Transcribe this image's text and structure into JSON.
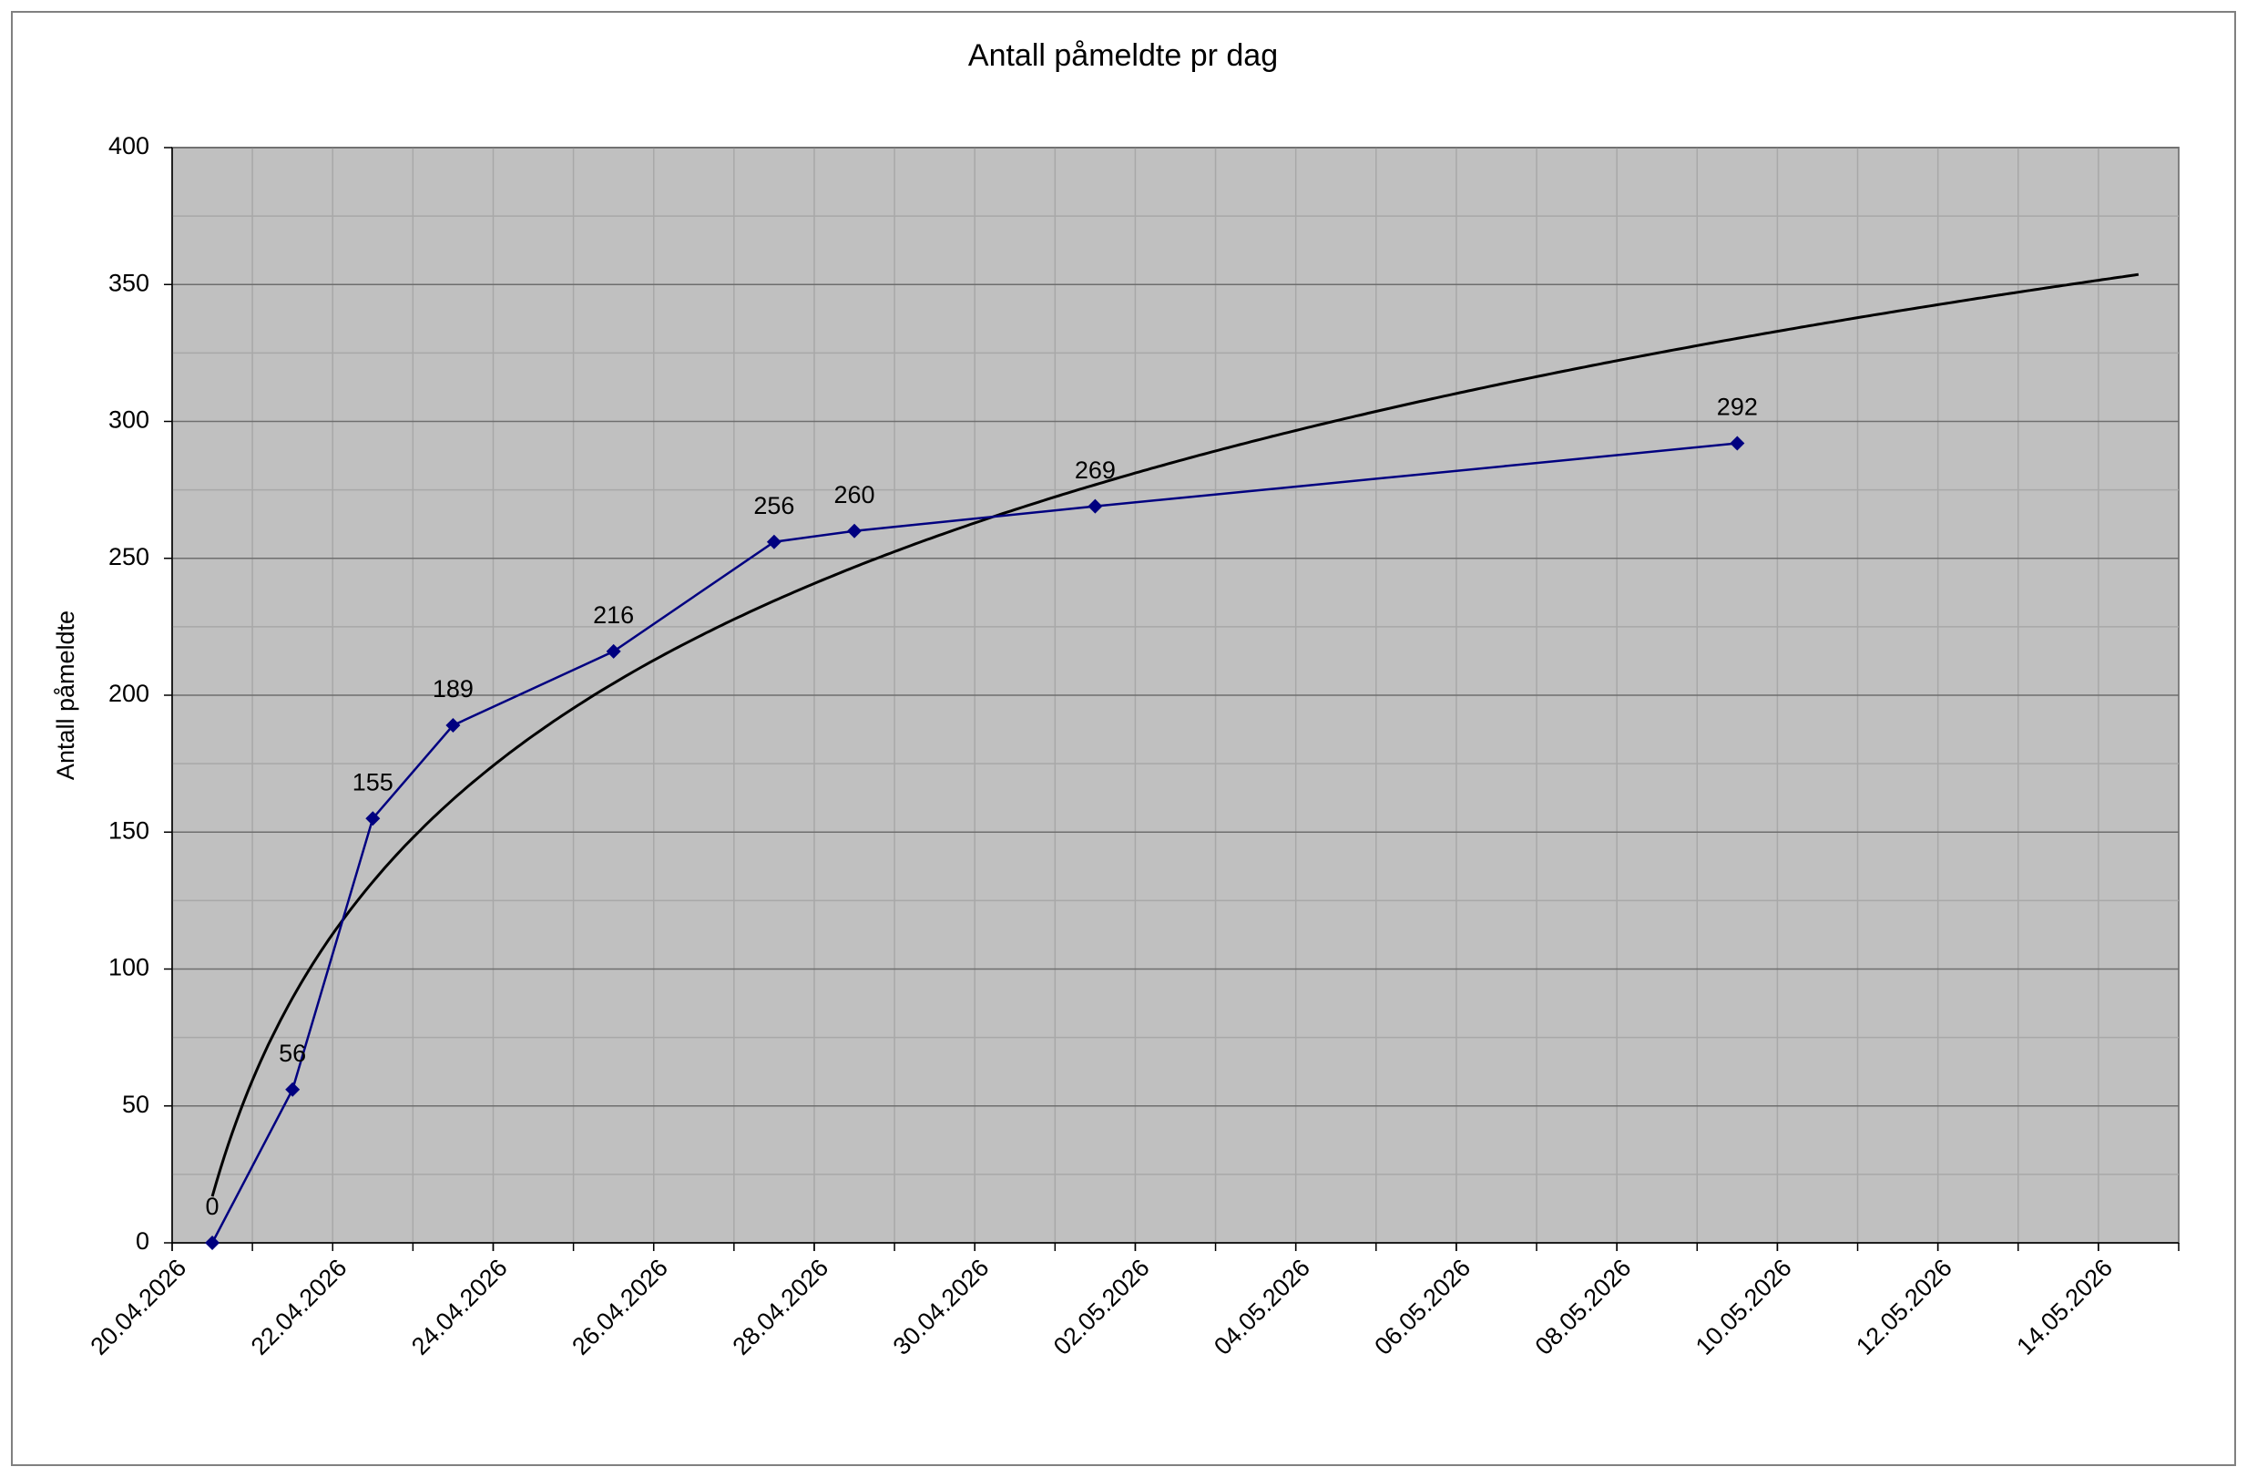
{
  "chart_data": {
    "type": "line",
    "title": "Antall påmeldte pr dag",
    "y_label": "Antall påmeldte",
    "x": [
      "20.04.2026",
      "21.04.2026",
      "22.04.2026",
      "23.04.2026",
      "25.04.2026",
      "27.04.2026",
      "28.04.2026",
      "01.05.2026",
      "09.05.2026"
    ],
    "series": [
      {
        "name": "Antall påmeldte",
        "color": "#000080",
        "values": [
          0,
          56,
          155,
          189,
          216,
          256,
          260,
          269,
          292
        ]
      }
    ],
    "xlim": [
      "20.04.2026",
      "14.05.2026"
    ],
    "xticks": [
      "20.04.2026",
      "22.04.2026",
      "24.04.2026",
      "26.04.2026",
      "28.04.2026",
      "30.04.2026",
      "02.05.2026",
      "04.05.2026",
      "06.05.2026",
      "08.05.2026",
      "10.05.2026",
      "12.05.2026",
      "14.05.2026"
    ],
    "ylim": [
      0,
      400
    ],
    "yticks": [
      0,
      50,
      100,
      150,
      200,
      250,
      300,
      350,
      400
    ],
    "grid": true,
    "plot_background": "#c0c0c0",
    "trendline": "logarithmic",
    "trendline_color": "#000000"
  }
}
